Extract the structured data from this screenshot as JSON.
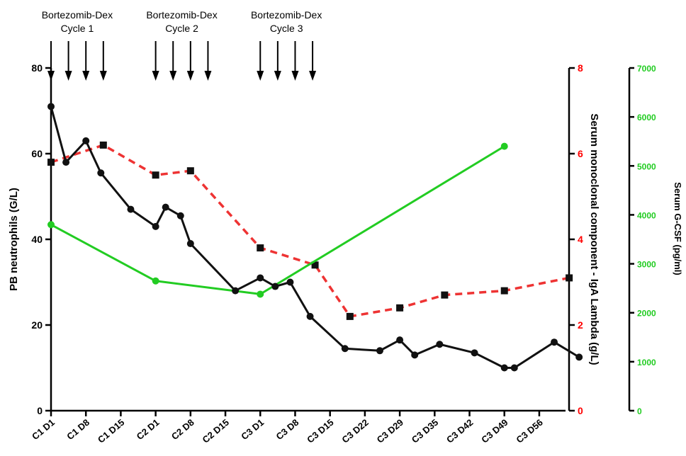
{
  "chart_data": {
    "type": "line",
    "x_categories": [
      "C1 D1",
      "C1 D8",
      "C1 D15",
      "C2 D1",
      "C2 D8",
      "C2 D15",
      "C3 D1",
      "C3 D8",
      "C3 D15",
      "C3 D22",
      "C3 D29",
      "C3 D35",
      "C3 D42",
      "C3 D49",
      "C3 D56"
    ],
    "annotations": [
      {
        "line1": "Bortezomib-Dex",
        "line2": "Cycle 1",
        "arrow_days": [
          0,
          3.5,
          7,
          10.5
        ]
      },
      {
        "line1": "Bortezomib-Dex",
        "line2": "Cycle 2",
        "arrow_days": [
          21,
          24.5,
          28,
          31.5
        ]
      },
      {
        "line1": "Bortezomib-Dex",
        "line2": "Cycle 3",
        "arrow_days": [
          42,
          45.5,
          49,
          52.5
        ]
      }
    ],
    "axes": {
      "left": {
        "label": "PB neutrophils (G/L)",
        "range": [
          0,
          80
        ],
        "ticks": [
          "0",
          "20",
          "40",
          "60",
          "80"
        ],
        "color": "#000000"
      },
      "right1": {
        "label": "Serum monoclonal component - IgA Lambda (g/L)",
        "range": [
          0,
          8
        ],
        "ticks": [
          "0",
          "2",
          "4",
          "6",
          "8"
        ],
        "color": "#ff0000"
      },
      "right2": {
        "label": "Serum G-CSF (pg/ml)",
        "range": [
          0,
          7000
        ],
        "ticks": [
          "0",
          "1000",
          "2000",
          "3000",
          "4000",
          "5000",
          "6000",
          "7000"
        ],
        "color": "#22cc22"
      }
    },
    "series": [
      {
        "axis": "left",
        "color": "#111111",
        "style": "solid",
        "marker": "circle",
        "points": [
          [
            0,
            71
          ],
          [
            3,
            58
          ],
          [
            7,
            63
          ],
          [
            10,
            55.5
          ],
          [
            16,
            47
          ],
          [
            21,
            43
          ],
          [
            23,
            47.5
          ],
          [
            26,
            45.5
          ],
          [
            28,
            39
          ],
          [
            37,
            28
          ],
          [
            42,
            31
          ],
          [
            45,
            29
          ],
          [
            48,
            30
          ],
          [
            52,
            22
          ],
          [
            59,
            14.5
          ],
          [
            66,
            14
          ],
          [
            70,
            16.5
          ],
          [
            73,
            13
          ],
          [
            78,
            15.5
          ],
          [
            85,
            13.5
          ],
          [
            91,
            10
          ],
          [
            93,
            10
          ],
          [
            101,
            16
          ],
          [
            106,
            12.5
          ]
        ]
      },
      {
        "axis": "right1",
        "color": "#ee3333",
        "style": "dashed",
        "marker": "square",
        "points": [
          [
            0,
            5.8
          ],
          [
            10.5,
            6.2
          ],
          [
            21,
            5.5
          ],
          [
            28,
            5.6
          ],
          [
            42,
            3.8
          ],
          [
            53,
            3.4
          ],
          [
            60,
            2.2
          ],
          [
            70,
            2.4
          ],
          [
            79,
            2.7
          ],
          [
            91,
            2.8
          ],
          [
            104,
            3.1
          ]
        ]
      },
      {
        "axis": "right2",
        "color": "#22cc22",
        "style": "solid",
        "marker": "circle",
        "points": [
          [
            0,
            3800
          ],
          [
            21,
            2650
          ],
          [
            42,
            2380
          ],
          [
            91,
            5400
          ]
        ]
      }
    ]
  }
}
